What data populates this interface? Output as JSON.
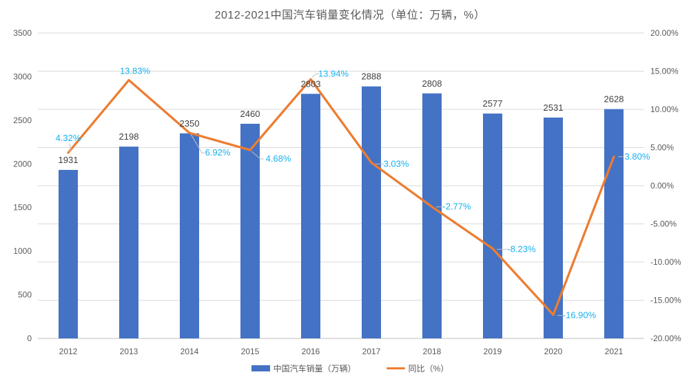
{
  "chart_data": {
    "type": "combo",
    "title": "2012-2021中国汽车销量变化情况（单位：万辆，%）",
    "categories": [
      "2012",
      "2013",
      "2014",
      "2015",
      "2016",
      "2017",
      "2018",
      "2019",
      "2020",
      "2021"
    ],
    "series": [
      {
        "name": "中国汽车销量（万辆）",
        "type": "bar",
        "axis": "left",
        "color": "#4472C4",
        "values": [
          1931,
          2198,
          2350,
          2460,
          2803,
          2888,
          2808,
          2577,
          2531,
          2628
        ],
        "value_labels": [
          "1931",
          "2198",
          "2350",
          "2460",
          "2803",
          "2888",
          "2808",
          "2577",
          "2531",
          "2628"
        ],
        "label_color": "#404040"
      },
      {
        "name": "同比（%）",
        "type": "line",
        "axis": "right",
        "color": "#ED7D31",
        "values": [
          4.32,
          13.83,
          6.92,
          4.68,
          13.94,
          3.03,
          -2.77,
          -8.23,
          -16.9,
          3.8
        ],
        "value_labels": [
          "4.32%",
          "13.83%",
          "6.92%",
          "4.68%",
          "13.94%",
          "3.03%",
          "-2.77%",
          "-8.23%",
          "-16.90%",
          "3.80%"
        ],
        "label_color": "#18B1EE"
      }
    ],
    "left_axis": {
      "min": 0,
      "max": 3500,
      "step": 500,
      "ticks": [
        "3500",
        "3000",
        "2500",
        "2000",
        "1500",
        "1000",
        "500",
        "0"
      ]
    },
    "right_axis": {
      "min": -20,
      "max": 20,
      "step": 5,
      "ticks": [
        "20.00%",
        "15.00%",
        "10.00%",
        "5.00%",
        "0.00%",
        "-5.00%",
        "-10.00%",
        "-15.00%",
        "-20.00%"
      ]
    },
    "legend": [
      "中国汽车销量（万辆）",
      "同比（%）"
    ],
    "legend_position": "bottom",
    "grid": true,
    "colors": {
      "grid_line": "#D9D9D9",
      "axis_line": "#BFBFBF",
      "axis_text": "#595959",
      "leader_line": "#BFBFBF",
      "background": "#FFFFFF"
    }
  }
}
